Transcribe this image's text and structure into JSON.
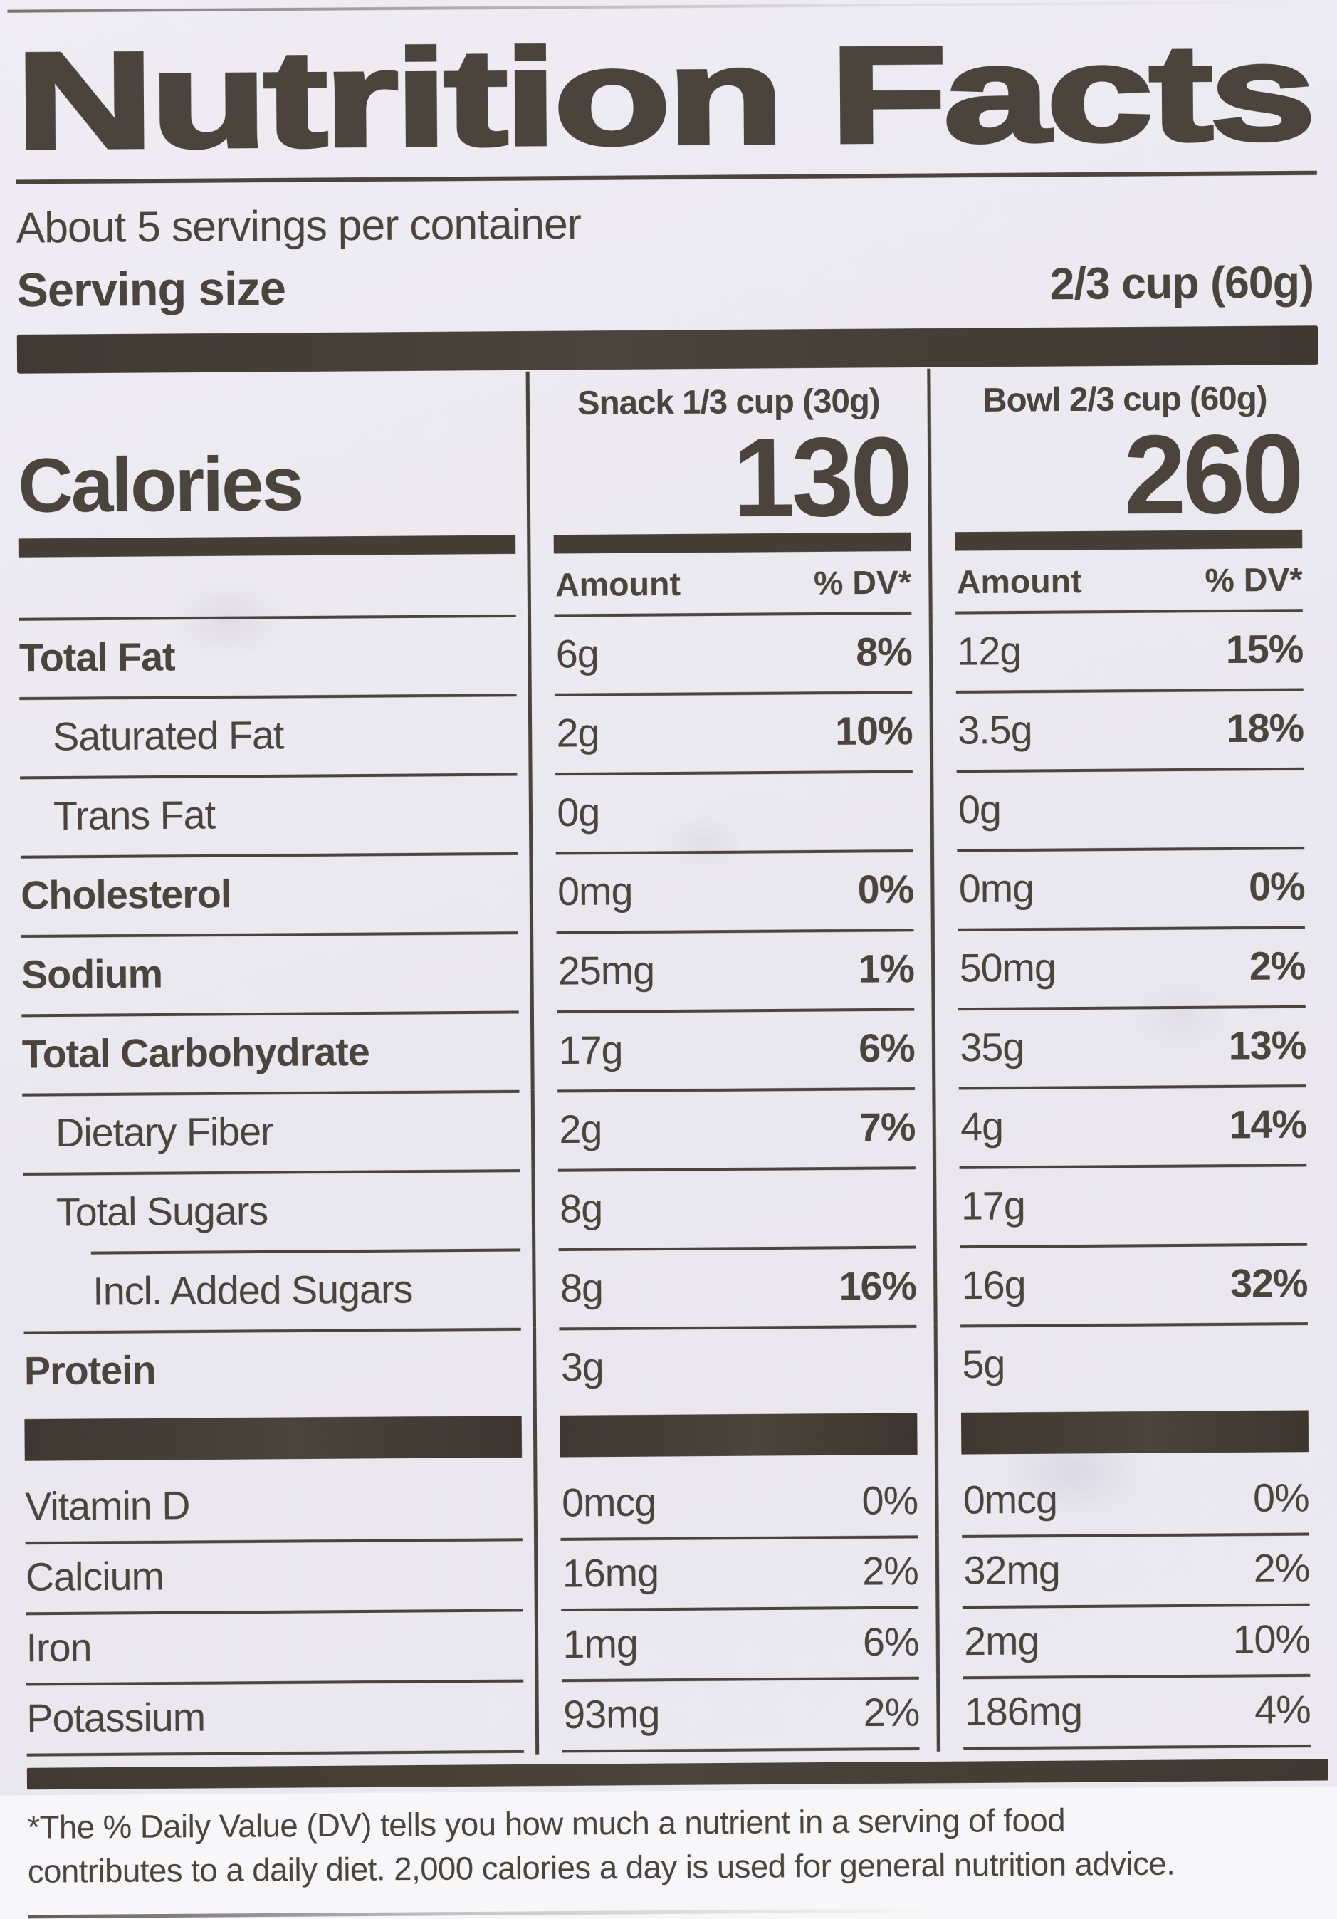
{
  "label": {
    "title": "Nutrition Facts",
    "servings_per_container": "About 5 servings per container",
    "serving_size": {
      "label": "Serving size",
      "value": "2/3 cup (60g)"
    },
    "columns": {
      "snack_header": "Snack 1/3 cup (30g)",
      "bowl_header": "Bowl 2/3 cup (60g)",
      "amount_header": "Amount",
      "dv_header": "% DV*"
    },
    "calories": {
      "label": "Calories",
      "snack": "130",
      "bowl": "260"
    },
    "nutrients": [
      {
        "label": "Total Fat",
        "snack_amount": "6g",
        "snack_dv": "8%",
        "bowl_amount": "12g",
        "bowl_dv": "15%"
      },
      {
        "label": "Saturated Fat",
        "snack_amount": "2g",
        "snack_dv": "10%",
        "bowl_amount": "3.5g",
        "bowl_dv": "18%"
      },
      {
        "label": "Trans Fat",
        "snack_amount": "0g",
        "snack_dv": "",
        "bowl_amount": "0g",
        "bowl_dv": ""
      },
      {
        "label": "Cholesterol",
        "snack_amount": "0mg",
        "snack_dv": "0%",
        "bowl_amount": "0mg",
        "bowl_dv": "0%"
      },
      {
        "label": "Sodium",
        "snack_amount": "25mg",
        "snack_dv": "1%",
        "bowl_amount": "50mg",
        "bowl_dv": "2%"
      },
      {
        "label": "Total Carbohydrate",
        "snack_amount": "17g",
        "snack_dv": "6%",
        "bowl_amount": "35g",
        "bowl_dv": "13%"
      },
      {
        "label": "Dietary Fiber",
        "snack_amount": "2g",
        "snack_dv": "7%",
        "bowl_amount": "4g",
        "bowl_dv": "14%"
      },
      {
        "label": "Total Sugars",
        "snack_amount": "8g",
        "snack_dv": "",
        "bowl_amount": "17g",
        "bowl_dv": ""
      },
      {
        "label": "Incl. Added Sugars",
        "snack_amount": "8g",
        "snack_dv": "16%",
        "bowl_amount": "16g",
        "bowl_dv": "32%"
      },
      {
        "label": "Protein",
        "snack_amount": "3g",
        "snack_dv": "",
        "bowl_amount": "5g",
        "bowl_dv": ""
      }
    ],
    "vitamins": [
      {
        "label": "Vitamin D",
        "snack_amount": "0mcg",
        "snack_dv": "0%",
        "bowl_amount": "0mcg",
        "bowl_dv": "0%"
      },
      {
        "label": "Calcium",
        "snack_amount": "16mg",
        "snack_dv": "2%",
        "bowl_amount": "32mg",
        "bowl_dv": "2%"
      },
      {
        "label": "Iron",
        "snack_amount": "1mg",
        "snack_dv": "6%",
        "bowl_amount": "2mg",
        "bowl_dv": "10%"
      },
      {
        "label": "Potassium",
        "snack_amount": "93mg",
        "snack_dv": "2%",
        "bowl_amount": "186mg",
        "bowl_dv": "4%"
      }
    ],
    "footnote": "*The % Daily Value (DV) tells you how much a nutrient in a serving of food contributes to a daily diet. 2,000 calories a day is used for general nutrition advice.",
    "colors": {
      "ink": "#4a443d",
      "paper": "#eceaf0"
    }
  }
}
